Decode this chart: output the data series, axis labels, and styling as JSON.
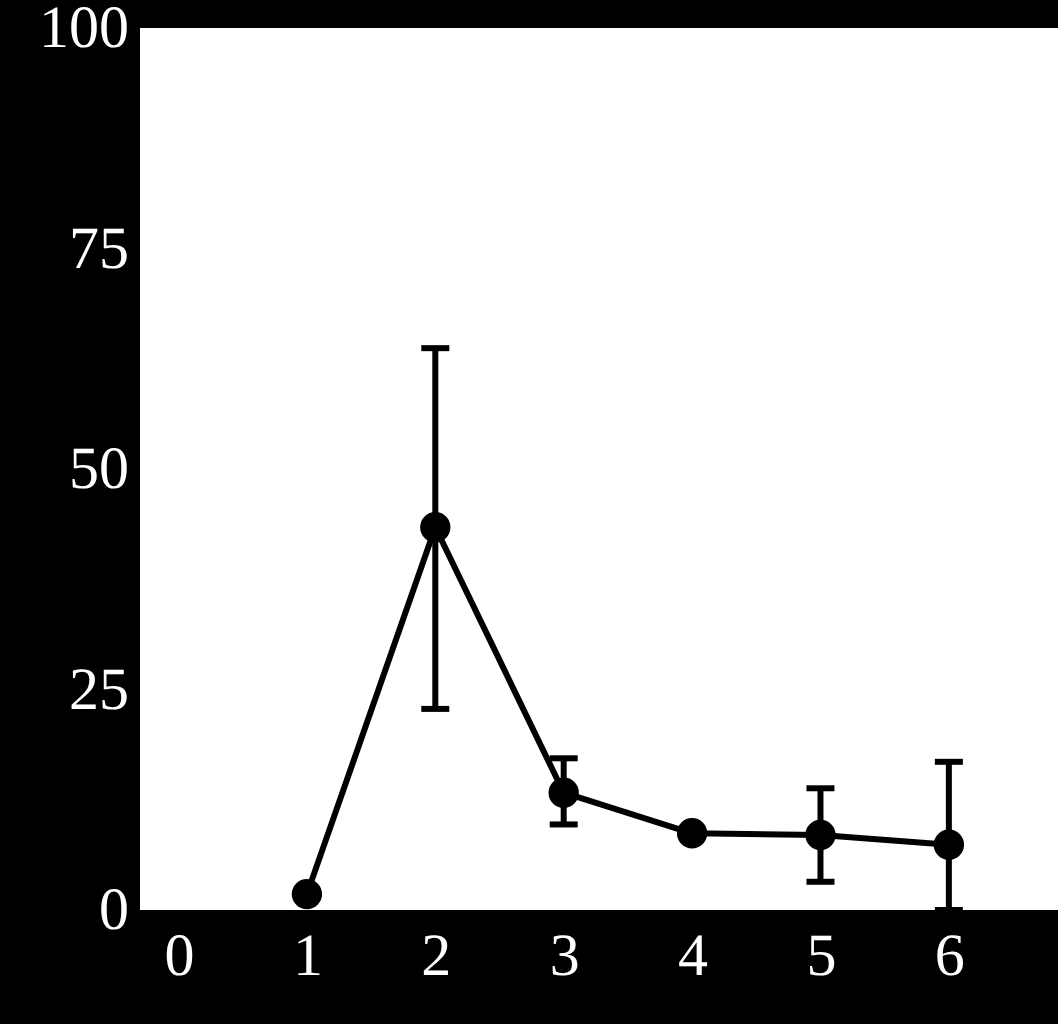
{
  "chart_data": {
    "type": "line",
    "x": [
      1,
      2,
      3,
      4,
      5,
      6
    ],
    "series": [
      {
        "color": "#000000",
        "values": [
          1.8,
          43.4,
          13.3,
          8.7,
          8.5,
          7.4
        ],
        "errors": [
          null,
          [
            22.8,
            63.7
          ],
          [
            9.7,
            17.2
          ],
          null,
          [
            3.2,
            13.8
          ],
          [
            0,
            16.8
          ]
        ]
      }
    ],
    "xlim": [
      -0.3,
      6.85
    ],
    "xticks": [
      0,
      1,
      2,
      3,
      4,
      5,
      6
    ],
    "ylim": [
      0,
      100
    ],
    "yticks": [
      0,
      25,
      50,
      75,
      100
    ],
    "marker": "circle",
    "line_style": "solid",
    "grid": false
  }
}
